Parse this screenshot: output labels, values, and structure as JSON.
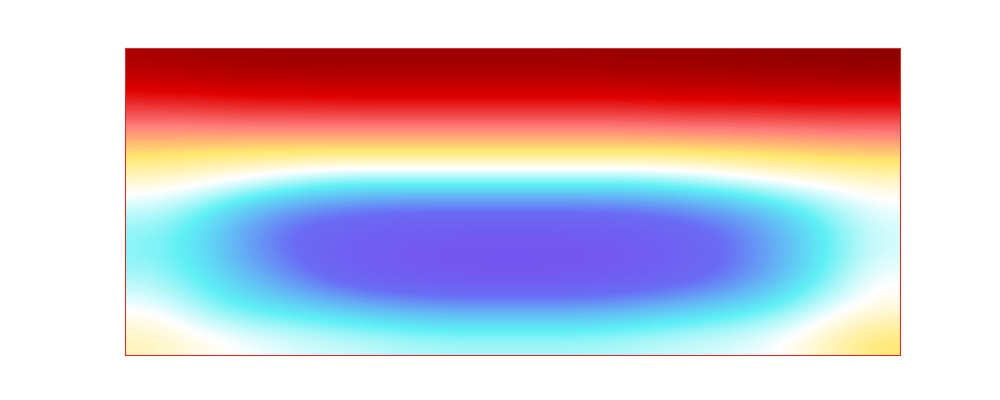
{
  "chart_data": {
    "type": "heatmap",
    "tick_labels": false,
    "clim": [
      0,
      1
    ],
    "cells": [
      [
        0.95,
        0.96,
        0.97,
        0.97,
        0.97,
        0.97,
        0.97,
        0.97,
        0.97,
        0.97,
        0.98,
        0.98,
        0.98,
        0.99,
        0.99,
        1.0
      ],
      [
        0.85,
        0.86,
        0.87,
        0.87,
        0.88,
        0.88,
        0.88,
        0.88,
        0.88,
        0.88,
        0.88,
        0.89,
        0.89,
        0.9,
        0.9,
        0.9
      ],
      [
        0.72,
        0.72,
        0.73,
        0.73,
        0.73,
        0.73,
        0.73,
        0.73,
        0.73,
        0.73,
        0.73,
        0.74,
        0.74,
        0.74,
        0.75,
        0.75
      ],
      [
        0.6,
        0.59,
        0.58,
        0.58,
        0.58,
        0.58,
        0.58,
        0.58,
        0.58,
        0.58,
        0.58,
        0.58,
        0.59,
        0.6,
        0.61,
        0.62
      ],
      [
        0.52,
        0.5,
        0.47,
        0.43,
        0.4,
        0.4,
        0.4,
        0.4,
        0.4,
        0.4,
        0.4,
        0.42,
        0.45,
        0.48,
        0.5,
        0.52
      ],
      [
        0.45,
        0.4,
        0.3,
        0.22,
        0.18,
        0.15,
        0.15,
        0.15,
        0.15,
        0.15,
        0.16,
        0.2,
        0.25,
        0.33,
        0.42,
        0.48
      ],
      [
        0.42,
        0.38,
        0.28,
        0.18,
        0.1,
        0.08,
        0.06,
        0.05,
        0.05,
        0.06,
        0.08,
        0.12,
        0.2,
        0.3,
        0.4,
        0.47
      ],
      [
        0.45,
        0.4,
        0.33,
        0.25,
        0.15,
        0.1,
        0.08,
        0.06,
        0.06,
        0.08,
        0.1,
        0.15,
        0.22,
        0.32,
        0.42,
        0.5
      ],
      [
        0.5,
        0.45,
        0.4,
        0.38,
        0.35,
        0.32,
        0.3,
        0.3,
        0.3,
        0.3,
        0.32,
        0.35,
        0.38,
        0.42,
        0.48,
        0.52
      ],
      [
        0.55,
        0.52,
        0.5,
        0.48,
        0.47,
        0.46,
        0.45,
        0.45,
        0.45,
        0.45,
        0.46,
        0.47,
        0.48,
        0.5,
        0.55,
        0.6
      ]
    ]
  }
}
